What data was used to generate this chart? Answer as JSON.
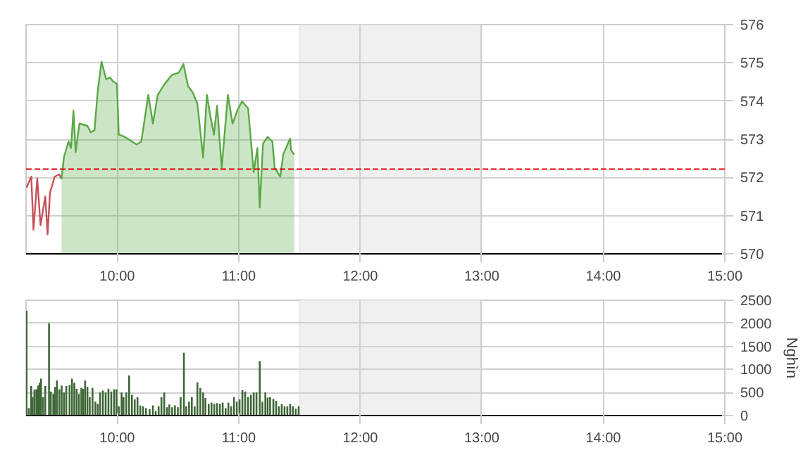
{
  "chart_data": [
    {
      "type": "line",
      "xlim": [
        9.25,
        15
      ],
      "ylim": [
        570,
        576
      ],
      "xticks": [
        {
          "value": 10,
          "label": "10:00"
        },
        {
          "value": 11,
          "label": "11:00"
        },
        {
          "value": 12,
          "label": "12:00"
        },
        {
          "value": 13,
          "label": "13:00"
        },
        {
          "value": 14,
          "label": "14:00"
        },
        {
          "value": 15,
          "label": "15:00"
        }
      ],
      "yticks": [
        570,
        571,
        572,
        573,
        574,
        575,
        576
      ],
      "grid": true,
      "series": [
        {
          "type": "line",
          "color": "#c8505a",
          "x": [
            9.253,
            9.293,
            9.311,
            9.342,
            9.369,
            9.408,
            9.427,
            9.447,
            9.485,
            9.524,
            9.542
          ],
          "values": [
            571.73,
            572.02,
            570.63,
            571.97,
            570.75,
            571.5,
            570.51,
            571.6,
            572.02,
            572.08,
            571.96
          ]
        },
        {
          "type": "area",
          "color": "#5aa846",
          "x": [
            9.542,
            9.562,
            9.6,
            9.62,
            9.64,
            9.658,
            9.689,
            9.755,
            9.782,
            9.813,
            9.84,
            9.871,
            9.909,
            9.94,
            9.967,
            9.998,
            10.013,
            10.063,
            10.121,
            10.16,
            10.198,
            10.256,
            10.294,
            10.334,
            10.391,
            10.449,
            10.507,
            10.545,
            10.583,
            10.622,
            10.66,
            10.707,
            10.738,
            10.768,
            10.796,
            10.822,
            10.86,
            10.911,
            10.949,
            10.988,
            11.027,
            11.077,
            11.123,
            11.154,
            11.173,
            11.2,
            11.238,
            11.277,
            11.296,
            11.342,
            11.366,
            11.423,
            11.431,
            11.457
          ],
          "values": [
            571.96,
            572.54,
            572.94,
            572.77,
            573.75,
            572.66,
            573.41,
            573.35,
            573.18,
            573.23,
            574.27,
            575.03,
            574.57,
            574.62,
            574.51,
            574.45,
            573.12,
            573.06,
            572.94,
            572.86,
            572.94,
            574.16,
            573.41,
            574.16,
            574.45,
            574.68,
            574.74,
            574.97,
            574.39,
            574.22,
            573.93,
            572.52,
            574.16,
            573.58,
            573.12,
            573.88,
            572.25,
            574.16,
            573.41,
            573.75,
            573.99,
            573.81,
            572.14,
            572.77,
            571.21,
            572.89,
            573.06,
            572.94,
            572.25,
            572.02,
            572.6,
            573.02,
            572.71,
            572.6
          ]
        }
      ],
      "ref_lines": [
        {
          "axis": "y",
          "value": 572.22,
          "color": "#e00000",
          "line_style": "dashed"
        }
      ],
      "bands": [
        {
          "axis": "x",
          "from": 11.5,
          "to": 13,
          "color": "#f0f0f0"
        }
      ]
    },
    {
      "type": "bar",
      "ylabel": "Nghìn",
      "xlim": [
        9.25,
        15
      ],
      "ylim": [
        0,
        2500
      ],
      "xticks": [
        {
          "value": 10,
          "label": "10:00"
        },
        {
          "value": 11,
          "label": "11:00"
        },
        {
          "value": 12,
          "label": "12:00"
        },
        {
          "value": 13,
          "label": "13:00"
        },
        {
          "value": 14,
          "label": "14:00"
        },
        {
          "value": 15,
          "label": "15:00"
        }
      ],
      "yticks": [
        0,
        500,
        1000,
        1500,
        2000,
        2500
      ],
      "grid": true,
      "series": [
        {
          "color": "#3d6635",
          "x": [
            9.254,
            9.273,
            9.292,
            9.304,
            9.319,
            9.335,
            9.35,
            9.362,
            9.373,
            9.389,
            9.408,
            9.439,
            9.454,
            9.474,
            9.489,
            9.504,
            9.524,
            9.543,
            9.562,
            9.581,
            9.608,
            9.628,
            9.647,
            9.666,
            9.685,
            9.705,
            9.72,
            9.736,
            9.755,
            9.774,
            9.797,
            9.82,
            9.84,
            9.859,
            9.882,
            9.905,
            9.928,
            9.951,
            9.974,
            9.994,
            10.013,
            10.036,
            10.052,
            10.075,
            10.098,
            10.121,
            10.144,
            10.167,
            10.19,
            10.213,
            10.237,
            10.267,
            10.294,
            10.317,
            10.341,
            10.364,
            10.387,
            10.41,
            10.429,
            10.452,
            10.475,
            10.499,
            10.522,
            10.549,
            10.568,
            10.591,
            10.614,
            10.637,
            10.66,
            10.684,
            10.707,
            10.726,
            10.753,
            10.776,
            10.799,
            10.822,
            10.845,
            10.868,
            10.892,
            10.915,
            10.938,
            10.961,
            10.984,
            11.007,
            11.03,
            11.053,
            11.077,
            11.1,
            11.123,
            11.146,
            11.173,
            11.195,
            11.219,
            11.238,
            11.258,
            11.285,
            11.308,
            11.331,
            11.354,
            11.377,
            11.4,
            11.423,
            11.445,
            11.469,
            11.493
          ],
          "values": [
            2270,
            160,
            640,
            400,
            560,
            570,
            650,
            710,
            800,
            400,
            640,
            2000,
            520,
            470,
            620,
            760,
            570,
            650,
            500,
            640,
            660,
            800,
            710,
            580,
            470,
            600,
            580,
            760,
            620,
            400,
            600,
            300,
            250,
            500,
            540,
            500,
            580,
            520,
            570,
            570,
            200,
            500,
            400,
            500,
            870,
            450,
            350,
            400,
            220,
            200,
            160,
            140,
            220,
            100,
            200,
            400,
            500,
            180,
            240,
            180,
            220,
            180,
            400,
            1360,
            200,
            300,
            400,
            200,
            720,
            600,
            500,
            380,
            250,
            280,
            250,
            270,
            250,
            280,
            160,
            280,
            200,
            400,
            300,
            350,
            550,
            520,
            400,
            450,
            500,
            500,
            1180,
            300,
            500,
            390,
            400,
            360,
            320,
            200,
            250,
            200,
            200,
            250,
            200,
            150,
            200
          ]
        }
      ],
      "bands": [
        {
          "axis": "x",
          "from": 11.5,
          "to": 13,
          "color": "#f0f0f0"
        }
      ]
    }
  ]
}
